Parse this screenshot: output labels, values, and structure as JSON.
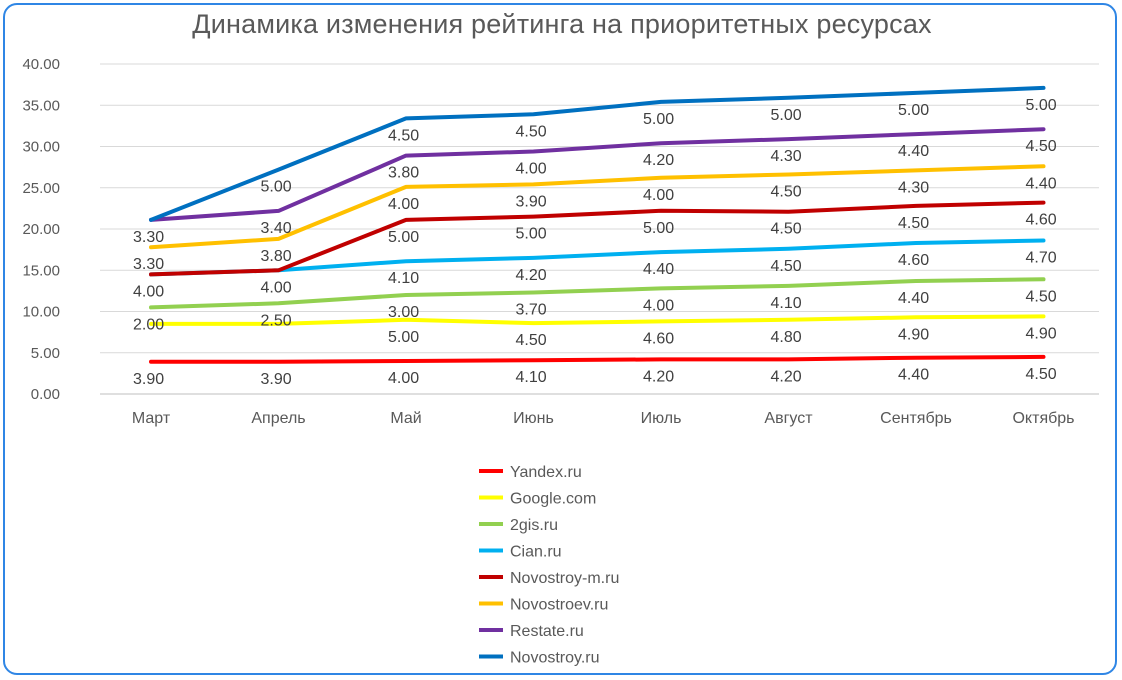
{
  "chart_data": {
    "type": "line",
    "title": "Динамика изменения рейтинга на приоритетных ресурсах",
    "stacked": true,
    "categories": [
      "Март",
      "Апрель",
      "Май",
      "Июнь",
      "Июль",
      "Август",
      "Сентябрь",
      "Октябрь"
    ],
    "ylim": [
      0,
      40
    ],
    "yticks": [
      "0.00",
      "5.00",
      "10.00",
      "15.00",
      "20.00",
      "25.00",
      "30.00",
      "35.00",
      "40.00"
    ],
    "grid": true,
    "legend_position": "bottom",
    "series": [
      {
        "name": "Yandex.ru",
        "color": "#ff0000",
        "values": [
          3.9,
          3.9,
          4.0,
          4.1,
          4.2,
          4.2,
          4.4,
          4.5
        ],
        "labels": [
          "3.90",
          "3.90",
          "4.00",
          "4.10",
          "4.20",
          "4.20",
          "4.40",
          "4.50"
        ]
      },
      {
        "name": "Google.com",
        "color": "#ffff00",
        "values": [
          4.6,
          4.6,
          5.0,
          4.5,
          4.6,
          4.8,
          4.9,
          4.9
        ],
        "labels": [
          "",
          "",
          "5.00",
          "4.50",
          "4.60",
          "4.80",
          "4.90",
          "4.90"
        ]
      },
      {
        "name": "2gis.ru",
        "color": "#92d050",
        "values": [
          2.0,
          2.5,
          3.0,
          3.7,
          4.0,
          4.1,
          4.4,
          4.5
        ],
        "labels": [
          "2.00",
          "2.50",
          "3.00",
          "3.70",
          "4.00",
          "4.10",
          "4.40",
          "4.50"
        ]
      },
      {
        "name": "Cian.ru",
        "color": "#00b0f0",
        "values": [
          4.0,
          4.0,
          4.1,
          4.2,
          4.4,
          4.5,
          4.6,
          4.7
        ],
        "labels": [
          "4.00",
          "4.00",
          "4.10",
          "4.20",
          "4.40",
          "4.50",
          "4.60",
          "4.70"
        ]
      },
      {
        "name": "Novostroy-m.ru",
        "color": "#c00000",
        "values": [
          0.0,
          0.0,
          5.0,
          5.0,
          5.0,
          4.5,
          4.5,
          4.6
        ],
        "labels": [
          "",
          "",
          "5.00",
          "5.00",
          "5.00",
          "4.50",
          "4.50",
          "4.60"
        ]
      },
      {
        "name": "Novostroev.ru",
        "color": "#ffc000",
        "values": [
          3.3,
          3.8,
          4.0,
          3.9,
          4.0,
          4.5,
          4.3,
          4.4
        ],
        "labels": [
          "3.30",
          "3.80",
          "4.00",
          "3.90",
          "4.00",
          "4.50",
          "4.30",
          "4.40"
        ]
      },
      {
        "name": "Restate.ru",
        "color": "#7030a0",
        "values": [
          3.3,
          3.4,
          3.8,
          4.0,
          4.2,
          4.3,
          4.4,
          4.5
        ],
        "labels": [
          "3.30",
          "3.40",
          "3.80",
          "4.00",
          "4.20",
          "4.30",
          "4.40",
          "4.50"
        ]
      },
      {
        "name": "Novostroy.ru",
        "color": "#0070c0",
        "values": [
          0.0,
          5.0,
          4.5,
          4.5,
          5.0,
          5.0,
          5.0,
          5.0
        ],
        "labels": [
          "",
          "5.00",
          "4.50",
          "4.50",
          "5.00",
          "5.00",
          "5.00",
          "5.00"
        ]
      }
    ]
  }
}
